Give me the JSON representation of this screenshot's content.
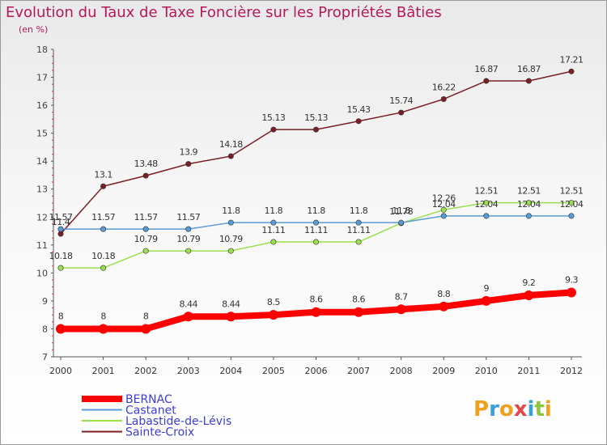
{
  "title": "Evolution du Taux de Taxe Foncière sur les Propriétés Bâties",
  "subtitle": "(en %)",
  "brand": "Proxiti",
  "colors": {
    "accent": "#b5185a",
    "legend_text": "#3c3cd8"
  },
  "chart_data": {
    "type": "line",
    "title": "Evolution du Taux de Taxe Foncière sur les Propriétés Bâties",
    "ylabel": "(en %)",
    "xlabel": "",
    "x": [
      "2000",
      "2001",
      "2002",
      "2003",
      "2004",
      "2005",
      "2006",
      "2007",
      "2008",
      "2009",
      "2010",
      "2011",
      "2012"
    ],
    "ylim": [
      7,
      18
    ],
    "yticks": [
      "7",
      "8",
      "9",
      "10",
      "11",
      "12",
      "13",
      "14",
      "15",
      "16",
      "17",
      "18"
    ],
    "grid": false,
    "legend_position": "bottom-left",
    "series": [
      {
        "name": "BERNAC",
        "color": "#ff0000",
        "width": 8,
        "values": [
          8,
          8,
          8,
          8.44,
          8.44,
          8.5,
          8.6,
          8.6,
          8.7,
          8.8,
          9,
          9.2,
          9.3
        ],
        "labels": [
          "8",
          "8",
          "8",
          "8.44",
          "8.44",
          "8.5",
          "8.6",
          "8.6",
          "8.7",
          "8.8",
          "9",
          "9.2",
          "9.3"
        ]
      },
      {
        "name": "Castanet",
        "color": "#5b9bd5",
        "width": 1.5,
        "values": [
          11.57,
          11.57,
          11.57,
          11.57,
          11.8,
          11.8,
          11.8,
          11.8,
          11.8,
          12.04,
          12.04,
          12.04,
          12.04
        ],
        "labels": [
          "11.57",
          "11.57",
          "11.57",
          "11.57",
          "11.8",
          "11.8",
          "11.8",
          "11.8",
          "11.8",
          "12.04",
          "12.04",
          "12.04",
          "12.04"
        ]
      },
      {
        "name": "Labastide-de-Lévis",
        "color": "#9be04c",
        "width": 1.5,
        "values": [
          10.18,
          10.18,
          10.79,
          10.79,
          10.79,
          11.11,
          11.11,
          11.11,
          11.78,
          12.26,
          12.51,
          12.51,
          12.51
        ],
        "labels": [
          "10.18",
          "10.18",
          "10.79",
          "10.79",
          "10.79",
          "11.11",
          "11.11",
          "11.11",
          "11.78",
          "12.26",
          "12.51",
          "12.51",
          "12.51"
        ]
      },
      {
        "name": "Sainte-Croix",
        "color": "#7a1f25",
        "width": 1.5,
        "values": [
          11.4,
          13.1,
          13.48,
          13.9,
          14.18,
          15.13,
          15.13,
          15.43,
          15.74,
          16.22,
          16.87,
          16.87,
          17.21
        ],
        "labels": [
          "11.4",
          "13.1",
          "13.48",
          "13.9",
          "14.18",
          "15.13",
          "15.13",
          "15.43",
          "15.74",
          "16.22",
          "16.87",
          "16.87",
          "17.21"
        ]
      }
    ]
  }
}
